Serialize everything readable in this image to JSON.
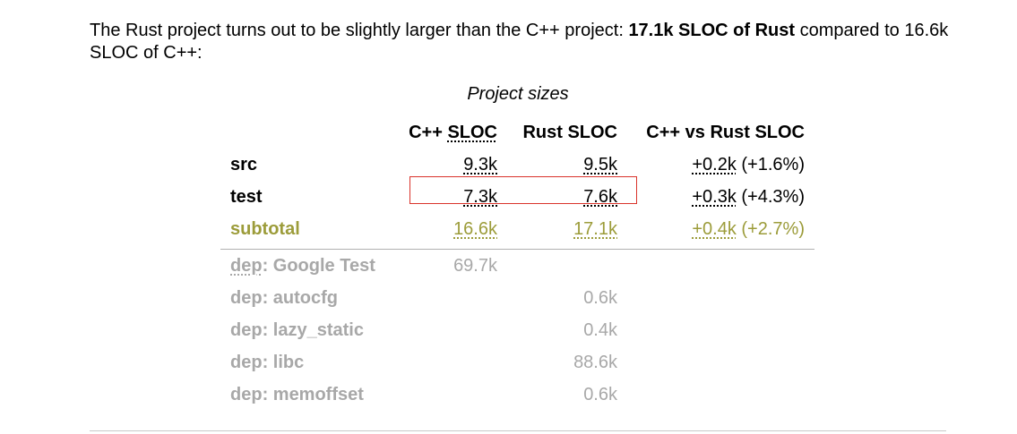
{
  "intro": {
    "text_before": "The Rust project turns out to be slightly larger than the C++ project: ",
    "bold": "17.1k SLOC of Rust",
    "text_after": " compared to 16.6k SLOC of C++:"
  },
  "table": {
    "caption": "Project sizes",
    "headers": {
      "cpp_prefix": "C++ ",
      "cpp_abbr": "SLOC",
      "rust": "Rust SLOC",
      "diff": "C++ vs Rust SLOC"
    },
    "rows": [
      {
        "label": "src",
        "cpp": "9.3k",
        "rust": "9.5k",
        "diff": "+0.2k",
        "diff_pct": " (+1.6%)"
      },
      {
        "label": "test",
        "cpp": "7.3k",
        "rust": "7.6k",
        "diff": "+0.3k",
        "diff_pct": " (+4.3%)"
      }
    ],
    "subtotal": {
      "label": "subtotal",
      "cpp": "16.6k",
      "rust": "17.1k",
      "diff": "+0.4k",
      "diff_pct": " (+2.7%)"
    },
    "deps": [
      {
        "prefix": "dep",
        "name": ": Google Test",
        "cpp": "69.7k",
        "rust": ""
      },
      {
        "prefix": "dep",
        "name": ": autocfg",
        "cpp": "",
        "rust": "0.6k"
      },
      {
        "prefix": "dep",
        "name": ": lazy_static",
        "cpp": "",
        "rust": "0.4k"
      },
      {
        "prefix": "dep",
        "name": ": libc",
        "cpp": "",
        "rust": "88.6k"
      },
      {
        "prefix": "dep",
        "name": ": memoffset",
        "cpp": "",
        "rust": "0.6k"
      }
    ]
  },
  "colors": {
    "subtotal": "#9c9c3a",
    "dep": "#a8a8a8",
    "highlight": "#d9332b"
  }
}
